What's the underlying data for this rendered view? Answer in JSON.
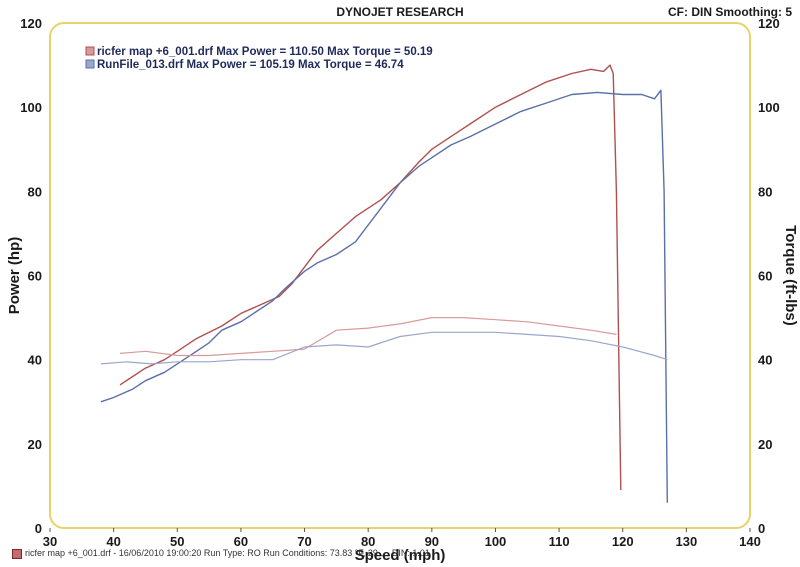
{
  "header": {
    "title": "DYNOJET RESEARCH",
    "cf_label": "CF: DIN  Smoothing: 5"
  },
  "footer": {
    "text": "ricfer map +6_001.drf - 16/06/2010 19:00:20  Run Type: RO  Run Conditions: 73.83 °F, 29.…  DIN: 1.01"
  },
  "colors": {
    "run1": "#b05050",
    "run1_torque": "#d89a9a",
    "run2": "#5a6fa8",
    "run2_torque": "#9aa6cc",
    "border": "#e8d26a"
  },
  "chart_data": {
    "type": "line",
    "xlabel": "Speed (mph)",
    "ylabel": "Power (hp)",
    "y2label": "Torque (ft-lbs)",
    "xlim": [
      30,
      140
    ],
    "ylim": [
      0,
      120
    ],
    "y2lim": [
      0,
      120
    ],
    "xticks": [
      30,
      40,
      50,
      60,
      70,
      80,
      90,
      100,
      110,
      120,
      130,
      140
    ],
    "yticks": [
      0,
      20,
      40,
      60,
      80,
      100,
      120
    ],
    "y2ticks": [
      0,
      20,
      40,
      60,
      80,
      100,
      120
    ],
    "grid": false,
    "legend": [
      "ricfer map +6_001.drf Max Power = 110.50     Max Torque = 50.19",
      "RunFile_013.drf Max Power = 105.19     Max Torque = 46.74"
    ],
    "series": [
      {
        "name": "ricfer map +6_001.drf",
        "kind": "power",
        "x": [
          41,
          43,
          45,
          48,
          50,
          53,
          57,
          60,
          63,
          66,
          68,
          70,
          72,
          75,
          78,
          80,
          82,
          85,
          88,
          90,
          93,
          96,
          100,
          104,
          108,
          112,
          115,
          117,
          118,
          118.5,
          119,
          119.7
        ],
        "y": [
          34,
          36,
          38,
          40,
          42,
          45,
          48,
          51,
          53,
          55,
          58,
          62,
          66,
          70,
          74,
          76,
          78,
          82,
          87,
          90,
          93,
          96,
          100,
          103,
          106,
          108,
          109,
          108.5,
          110,
          108,
          80,
          9
        ]
      },
      {
        "name": "RunFile_013.drf",
        "kind": "power",
        "x": [
          38,
          40,
          43,
          45,
          48,
          50,
          53,
          55,
          57,
          60,
          62,
          65,
          67,
          70,
          72,
          75,
          78,
          80,
          83,
          85,
          88,
          90,
          93,
          96,
          100,
          104,
          108,
          112,
          116,
          120,
          123,
          125,
          126,
          126.5,
          127
        ],
        "y": [
          30,
          31,
          33,
          35,
          37,
          39,
          42,
          44,
          47,
          49,
          51,
          54,
          57,
          61,
          63,
          65,
          68,
          72,
          78,
          82,
          86,
          88,
          91,
          93,
          96,
          99,
          101,
          103,
          103.5,
          103,
          103,
          102,
          104,
          80,
          6
        ]
      },
      {
        "name": "ricfer map +6_001.drf",
        "kind": "torque",
        "x": [
          41,
          45,
          50,
          55,
          60,
          65,
          70,
          75,
          80,
          85,
          90,
          95,
          100,
          105,
          110,
          115,
          119
        ],
        "y": [
          41.5,
          42,
          41,
          41,
          41.5,
          42,
          42.5,
          47,
          47.5,
          48.5,
          50,
          50,
          49.5,
          49,
          48,
          47,
          46
        ]
      },
      {
        "name": "RunFile_013.drf",
        "kind": "torque",
        "x": [
          38,
          42,
          46,
          50,
          55,
          60,
          65,
          70,
          75,
          80,
          85,
          90,
          95,
          100,
          105,
          110,
          115,
          120,
          125,
          127
        ],
        "y": [
          39,
          39.5,
          39,
          39.5,
          39.5,
          40,
          40,
          43,
          43.5,
          43,
          45.5,
          46.5,
          46.5,
          46.5,
          46,
          45.5,
          44.5,
          43,
          41,
          40
        ]
      }
    ]
  }
}
